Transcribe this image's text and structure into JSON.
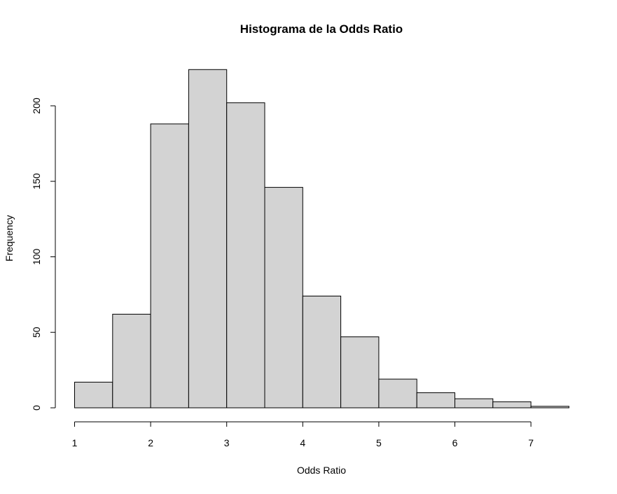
{
  "chart_data": {
    "type": "bar",
    "title": "Histograma de la Odds Ratio",
    "xlabel": "Odds Ratio",
    "ylabel": "Frequency",
    "bins": [
      {
        "from": 1.0,
        "to": 1.5,
        "value": 17
      },
      {
        "from": 1.5,
        "to": 2.0,
        "value": 62
      },
      {
        "from": 2.0,
        "to": 2.5,
        "value": 188
      },
      {
        "from": 2.5,
        "to": 3.0,
        "value": 224
      },
      {
        "from": 3.0,
        "to": 3.5,
        "value": 202
      },
      {
        "from": 3.5,
        "to": 4.0,
        "value": 146
      },
      {
        "from": 4.0,
        "to": 4.5,
        "value": 74
      },
      {
        "from": 4.5,
        "to": 5.0,
        "value": 47
      },
      {
        "from": 5.0,
        "to": 5.5,
        "value": 19
      },
      {
        "from": 5.5,
        "to": 6.0,
        "value": 10
      },
      {
        "from": 6.0,
        "to": 6.5,
        "value": 6
      },
      {
        "from": 6.5,
        "to": 7.0,
        "value": 4
      },
      {
        "from": 7.0,
        "to": 7.5,
        "value": 1
      }
    ],
    "xlim": [
      1,
      7.5
    ],
    "ylim": [
      0,
      224
    ],
    "x_ticks": [
      "1",
      "2",
      "3",
      "4",
      "5",
      "6",
      "7"
    ],
    "y_ticks": [
      "0",
      "50",
      "100",
      "150",
      "200"
    ],
    "bar_fill": "#d3d3d3",
    "bar_stroke": "#000000",
    "grid": false
  }
}
